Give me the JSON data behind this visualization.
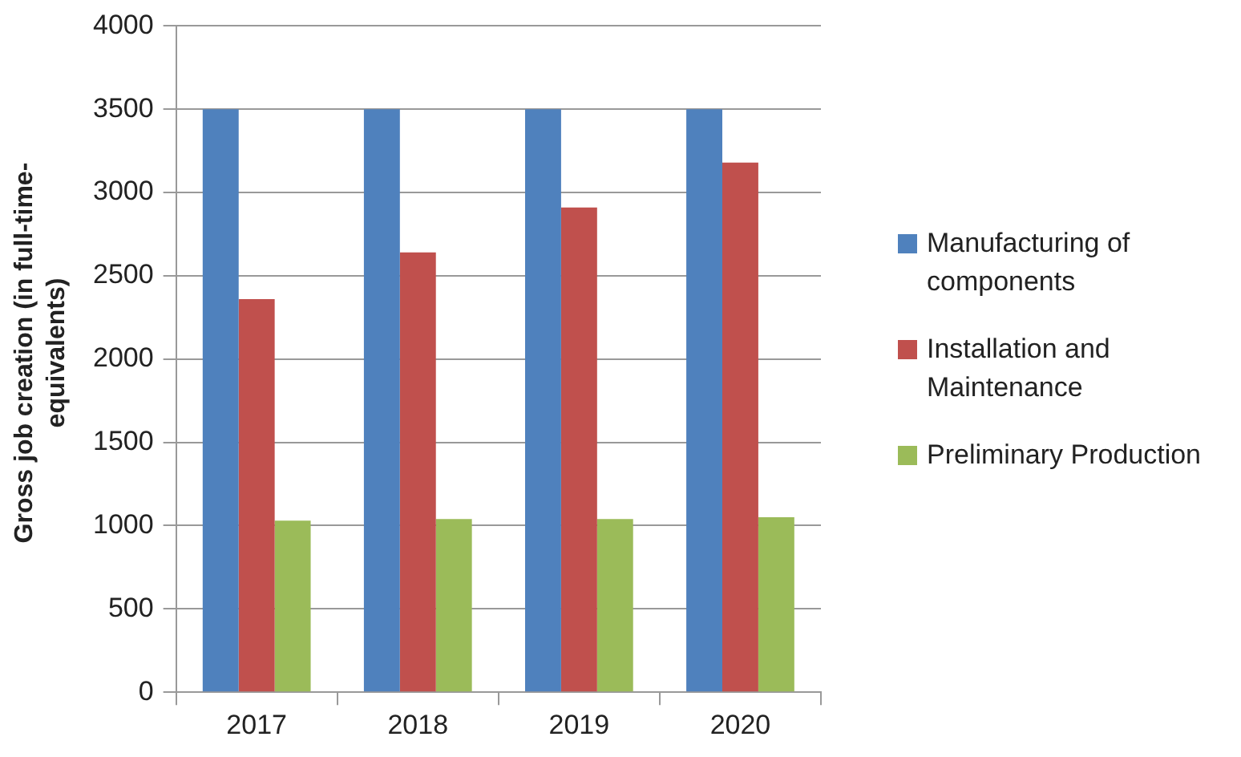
{
  "chart_data": {
    "type": "bar",
    "ylabel": "Gross job creation (in full-time-equivalents)",
    "categories": [
      "2017",
      "2018",
      "2019",
      "2020"
    ],
    "series": [
      {
        "name": "Manufacturing of components",
        "color": "#4f81bd",
        "values": [
          3500,
          3500,
          3500,
          3500
        ]
      },
      {
        "name": "Installation and Maintenance",
        "color": "#c0504d",
        "values": [
          2360,
          2640,
          2910,
          3180
        ]
      },
      {
        "name": "Preliminary Production",
        "color": "#9bbb59",
        "values": [
          1030,
          1040,
          1040,
          1050
        ]
      }
    ],
    "ylim": [
      0,
      4000
    ],
    "yticks": [
      0,
      500,
      1000,
      1500,
      2000,
      2500,
      3000,
      3500,
      4000
    ],
    "grid": "y",
    "legend": "right"
  }
}
